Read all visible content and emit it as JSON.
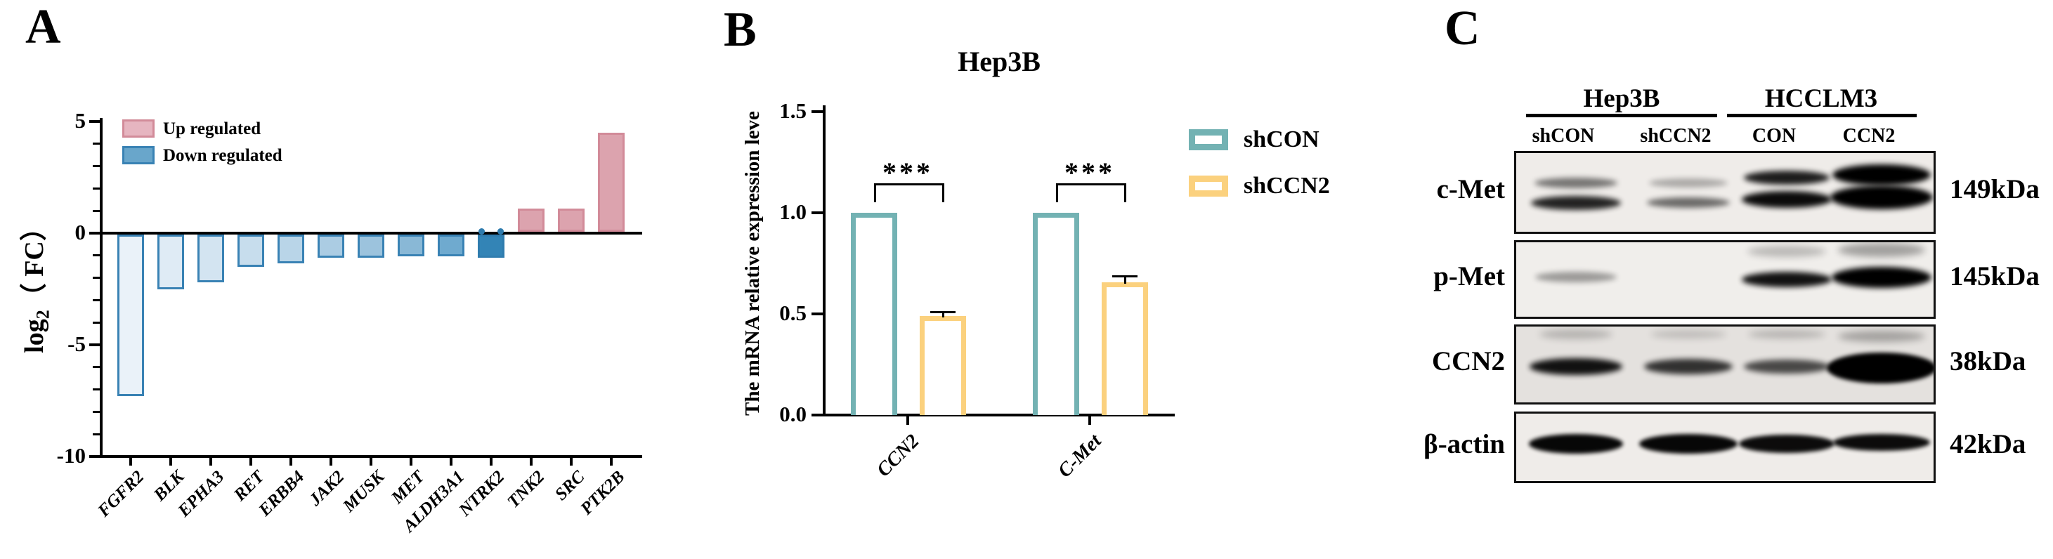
{
  "panelA": {
    "label": "A",
    "ylabel": {
      "pre": "log",
      "sub": "2",
      "post": "（ FC）"
    },
    "legend": [
      {
        "label": "Up regulated",
        "fill": "#E6B5C0",
        "border": "#D28B99"
      },
      {
        "label": "Down regulated",
        "fill": "#69A6CB",
        "border": "#3982B4"
      }
    ],
    "chart_data": {
      "type": "bar",
      "title": "",
      "xlabel": "",
      "ylabel": "log2（ FC）",
      "categories": [
        "FGFR2",
        "BLK",
        "EPHA3",
        "RET",
        "ERBB4",
        "JAK2",
        "MUSK",
        "MET",
        "ALDH3A1",
        "NTRK2",
        "TNK2",
        "SRC",
        "PTK2B"
      ],
      "values": [
        -7.3,
        -2.5,
        -2.2,
        -1.5,
        -1.35,
        -1.1,
        -1.1,
        -1.05,
        -1.05,
        -1.1,
        1.1,
        1.1,
        4.5
      ],
      "bar_fills": [
        "#EAF2F9",
        "#DFEBF5",
        "#D3E4F1",
        "#C7DDED",
        "#B9D5E8",
        "#ABCCE3",
        "#9CC3DD",
        "#89B8D6",
        "#6FAACF",
        "#3384B6",
        "#DCA3AE",
        "#DCA3AE",
        "#DCA3AE"
      ],
      "bar_borders": [
        "#3982B4",
        "#3982B4",
        "#3982B4",
        "#3982B4",
        "#3982B4",
        "#3982B4",
        "#3982B4",
        "#3982B4",
        "#3982B4",
        "#2F7CAE",
        "#D28B99",
        "#D28B99",
        "#D28B99"
      ],
      "ylim": [
        -10,
        5
      ],
      "yticks": [
        5,
        0,
        -5,
        -10
      ],
      "minor_tick_step": 1,
      "grid": false,
      "dot_markers": {
        "NTRK2": 2
      },
      "legend_position": "top-left"
    }
  },
  "panelB": {
    "label": "B",
    "chart_data": {
      "type": "grouped_bar",
      "title": "Hep3B",
      "xlabel": "",
      "ylabel": "The mRNA relative expression  leve",
      "categories": [
        "CCN2",
        "C-Met"
      ],
      "series": [
        {
          "name": "shCON",
          "color": "#73B2B3",
          "values": [
            1.0,
            1.0
          ],
          "errors": [
            0,
            0
          ]
        },
        {
          "name": "shCCN2",
          "color": "#FBD17E",
          "values": [
            0.49,
            0.655
          ],
          "errors": [
            0.025,
            0.035
          ]
        }
      ],
      "ylim": [
        0,
        1.5
      ],
      "yticks": [
        1.5,
        1.0,
        0.5,
        0.0
      ],
      "tick_format": "0.0|0.5|1.0|1.5",
      "significance": [
        {
          "category": "CCN2",
          "label": "***"
        },
        {
          "category": "C-Met",
          "label": "***"
        }
      ],
      "grid": false,
      "legend_position": "right",
      "bar_fill": "#ffffff"
    }
  },
  "panelC": {
    "label": "C",
    "groups": [
      {
        "name": "Hep3B",
        "lanes": [
          "shCON",
          "shCCN2"
        ]
      },
      {
        "name": "HCCLM3",
        "lanes": [
          "CON",
          "CCN2"
        ]
      }
    ],
    "lanes": [
      "shCON",
      "shCCN2",
      "CON",
      "CCN2"
    ],
    "rows": [
      {
        "protein": "c-Met",
        "kda": "149kDa",
        "bg": "#EFECE9",
        "bands": [
          [
            0,
            0.36,
            118,
            15,
            0.5,
            4
          ],
          [
            0,
            0.6,
            128,
            20,
            0.85,
            4
          ],
          [
            1,
            0.36,
            112,
            13,
            0.28,
            4
          ],
          [
            1,
            0.6,
            118,
            15,
            0.55,
            4
          ],
          [
            2,
            0.3,
            122,
            20,
            0.88,
            4
          ],
          [
            2,
            0.56,
            128,
            24,
            0.95,
            4
          ],
          [
            3,
            0.26,
            140,
            30,
            1.0,
            4
          ],
          [
            3,
            0.53,
            146,
            34,
            1.0,
            4
          ]
        ]
      },
      {
        "protein": "p-Met",
        "kda": "145kDa",
        "bg": "#F0EEEB",
        "bands": [
          [
            0,
            0.44,
            116,
            15,
            0.35,
            4
          ],
          [
            2,
            0.12,
            112,
            16,
            0.22,
            5
          ],
          [
            2,
            0.47,
            128,
            22,
            0.92,
            4
          ],
          [
            3,
            0.1,
            124,
            20,
            0.32,
            5
          ],
          [
            3,
            0.45,
            142,
            30,
            1.0,
            4
          ]
        ]
      },
      {
        "protein": "CCN2",
        "kda": "38kDa",
        "bg": "#E4E1DE",
        "bands": [
          [
            0,
            0.1,
            104,
            14,
            0.2,
            5
          ],
          [
            0,
            0.5,
            132,
            24,
            0.92,
            4
          ],
          [
            1,
            0.1,
            108,
            12,
            0.16,
            5
          ],
          [
            1,
            0.5,
            126,
            22,
            0.78,
            4
          ],
          [
            2,
            0.1,
            110,
            12,
            0.2,
            5
          ],
          [
            2,
            0.5,
            122,
            20,
            0.68,
            4
          ],
          [
            3,
            0.12,
            124,
            16,
            0.28,
            5
          ],
          [
            3,
            0.52,
            156,
            44,
            1.0,
            3
          ]
        ]
      },
      {
        "protein": "β-actin",
        "kda": "42kDa",
        "bg": "#EFECE9",
        "bands": [
          [
            0,
            0.42,
            134,
            28,
            0.97,
            3
          ],
          [
            1,
            0.42,
            140,
            28,
            0.97,
            3
          ],
          [
            2,
            0.42,
            136,
            26,
            0.95,
            3
          ],
          [
            3,
            0.4,
            138,
            24,
            0.95,
            3
          ]
        ]
      }
    ]
  }
}
